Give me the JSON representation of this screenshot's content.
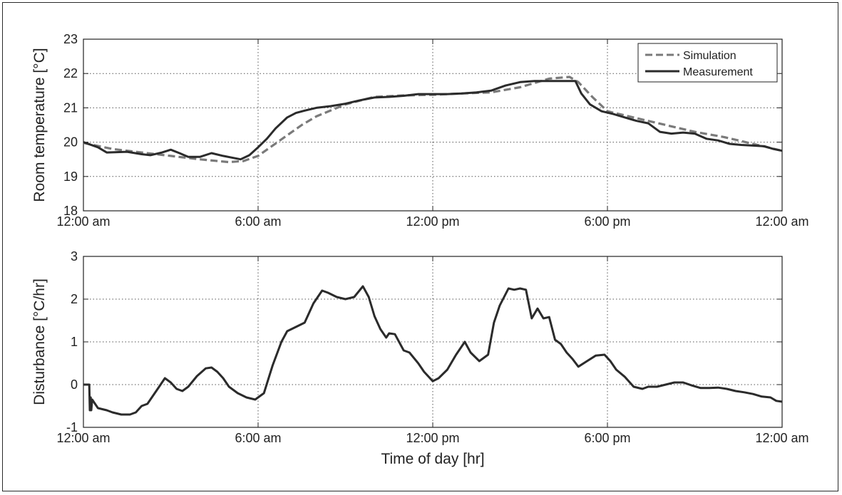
{
  "chart_data": [
    {
      "type": "line",
      "xlabel": "",
      "ylabel": "Room temperature [°C]",
      "x_tick_labels": [
        "12:00 am",
        "6:00 am",
        "12:00 pm",
        "6:00 pm",
        "12:00 am"
      ],
      "x_ticks_hr": [
        0,
        6,
        12,
        18,
        24
      ],
      "xlim": [
        0,
        24
      ],
      "ylim": [
        18,
        23
      ],
      "y_ticks": [
        18,
        19,
        20,
        21,
        22,
        23
      ],
      "grid": true,
      "legend": "top-right",
      "series": [
        {
          "name": "Simulation",
          "style": "dashed",
          "color": "#7a7a7a",
          "x": [
            0,
            1,
            2,
            3,
            4,
            5,
            5.5,
            6,
            6.5,
            7,
            7.5,
            8,
            9,
            10,
            11,
            12,
            13,
            14,
            15,
            16,
            16.7,
            17,
            17.5,
            18,
            19,
            20,
            21,
            22,
            23,
            24
          ],
          "y": [
            19.98,
            19.8,
            19.7,
            19.6,
            19.5,
            19.42,
            19.45,
            19.6,
            19.9,
            20.2,
            20.5,
            20.75,
            21.1,
            21.32,
            21.36,
            21.38,
            21.42,
            21.45,
            21.6,
            21.85,
            21.9,
            21.75,
            21.3,
            20.9,
            20.7,
            20.5,
            20.3,
            20.15,
            19.95,
            19.75
          ]
        },
        {
          "name": "Measurement",
          "style": "solid",
          "color": "#2b2b2b",
          "x": [
            0,
            0.5,
            0.8,
            1.5,
            2.0,
            2.3,
            2.7,
            3.0,
            3.3,
            3.6,
            4.0,
            4.4,
            4.8,
            5.1,
            5.4,
            5.7,
            6.0,
            6.3,
            6.6,
            7.0,
            7.3,
            7.6,
            8.0,
            8.5,
            9.0,
            9.5,
            10.0,
            10.5,
            11.0,
            11.5,
            12.0,
            12.5,
            13.0,
            13.5,
            14.0,
            14.5,
            15.0,
            15.5,
            16.0,
            16.5,
            16.9,
            17.1,
            17.4,
            17.8,
            18.2,
            18.6,
            19.0,
            19.4,
            19.8,
            20.2,
            20.6,
            21.0,
            21.4,
            21.8,
            22.2,
            22.6,
            23.0,
            23.4,
            23.7,
            24.0
          ],
          "y": [
            20.0,
            19.85,
            19.7,
            19.72,
            19.65,
            19.62,
            19.7,
            19.78,
            19.68,
            19.57,
            19.57,
            19.68,
            19.6,
            19.55,
            19.5,
            19.62,
            19.85,
            20.1,
            20.4,
            20.72,
            20.85,
            20.92,
            21.0,
            21.05,
            21.12,
            21.22,
            21.3,
            21.32,
            21.35,
            21.4,
            21.4,
            21.4,
            21.42,
            21.45,
            21.5,
            21.65,
            21.75,
            21.78,
            21.78,
            21.78,
            21.78,
            21.42,
            21.1,
            20.9,
            20.82,
            20.72,
            20.62,
            20.55,
            20.3,
            20.25,
            20.28,
            20.25,
            20.1,
            20.05,
            19.95,
            19.92,
            19.9,
            19.88,
            19.8,
            19.75
          ]
        }
      ]
    },
    {
      "type": "line",
      "xlabel": "Time of day [hr]",
      "ylabel": "Disturbance [°C/hr]",
      "x_tick_labels": [
        "12:00 am",
        "6:00 am",
        "12:00 pm",
        "6:00 pm",
        "12:00 am"
      ],
      "x_ticks_hr": [
        0,
        6,
        12,
        18,
        24
      ],
      "xlim": [
        0,
        24
      ],
      "ylim": [
        -1,
        3
      ],
      "y_ticks": [
        -1,
        0,
        1,
        2,
        3
      ],
      "grid": true,
      "series": [
        {
          "color": "#2b2b2b",
          "x": [
            0,
            0.2,
            0.22,
            0.25,
            0.27,
            0.3,
            0.5,
            0.8,
            1.0,
            1.3,
            1.6,
            1.8,
            2.0,
            2.2,
            2.4,
            2.6,
            2.8,
            3.0,
            3.2,
            3.4,
            3.6,
            3.9,
            4.2,
            4.4,
            4.6,
            4.8,
            5.0,
            5.3,
            5.6,
            5.9,
            6.2,
            6.5,
            6.8,
            7.0,
            7.3,
            7.6,
            7.9,
            8.2,
            8.4,
            8.7,
            9.0,
            9.3,
            9.6,
            9.8,
            10.0,
            10.2,
            10.4,
            10.5,
            10.7,
            11.0,
            11.2,
            11.5,
            11.7,
            12.0,
            12.2,
            12.5,
            12.8,
            13.1,
            13.3,
            13.6,
            13.9,
            14.1,
            14.3,
            14.6,
            14.8,
            15.0,
            15.2,
            15.4,
            15.6,
            15.8,
            16.0,
            16.2,
            16.4,
            16.6,
            16.8,
            17.0,
            17.3,
            17.6,
            17.9,
            18.1,
            18.3,
            18.6,
            18.9,
            19.2,
            19.4,
            19.7,
            20.0,
            20.3,
            20.6,
            20.9,
            21.2,
            21.5,
            21.8,
            22.1,
            22.4,
            22.7,
            23.0,
            23.3,
            23.6,
            23.8,
            24.0
          ],
          "y": [
            0,
            0,
            -0.6,
            -0.3,
            -0.6,
            -0.35,
            -0.55,
            -0.6,
            -0.65,
            -0.7,
            -0.7,
            -0.65,
            -0.5,
            -0.45,
            -0.25,
            -0.05,
            0.15,
            0.05,
            -0.1,
            -0.15,
            -0.05,
            0.2,
            0.38,
            0.4,
            0.3,
            0.15,
            -0.05,
            -0.2,
            -0.3,
            -0.35,
            -0.2,
            0.45,
            1.0,
            1.25,
            1.35,
            1.45,
            1.9,
            2.2,
            2.15,
            2.05,
            2.0,
            2.05,
            2.3,
            2.05,
            1.6,
            1.3,
            1.1,
            1.2,
            1.18,
            0.8,
            0.75,
            0.5,
            0.3,
            0.08,
            0.15,
            0.35,
            0.7,
            1.0,
            0.75,
            0.55,
            0.7,
            1.45,
            1.85,
            2.25,
            2.22,
            2.25,
            2.22,
            1.55,
            1.78,
            1.55,
            1.58,
            1.05,
            0.95,
            0.75,
            0.6,
            0.42,
            0.55,
            0.68,
            0.7,
            0.55,
            0.35,
            0.18,
            -0.05,
            -0.1,
            -0.05,
            -0.05,
            0.0,
            0.05,
            0.05,
            -0.02,
            -0.08,
            -0.08,
            -0.07,
            -0.1,
            -0.15,
            -0.18,
            -0.22,
            -0.28,
            -0.3,
            -0.38,
            -0.4
          ]
        }
      ]
    }
  ]
}
